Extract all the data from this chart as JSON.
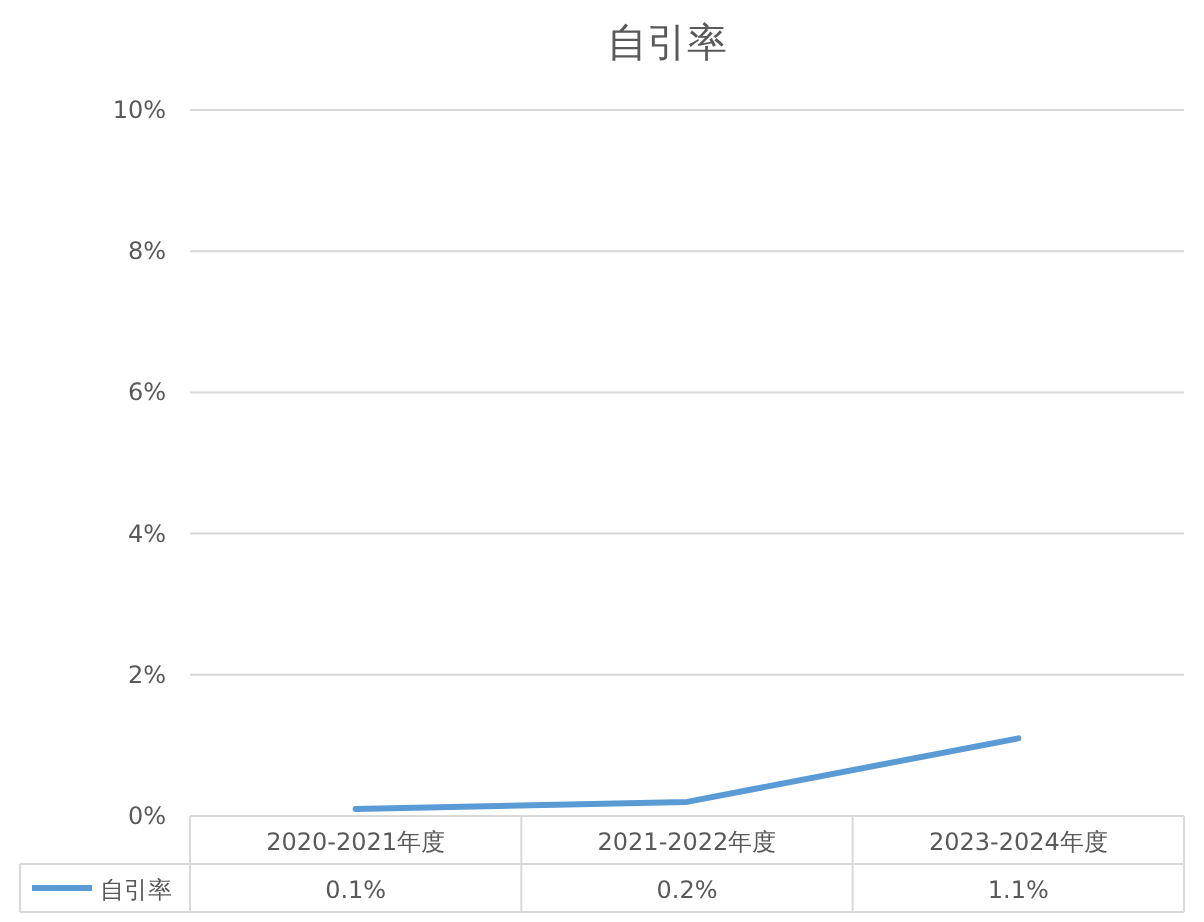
{
  "chart_data": {
    "type": "line",
    "title": "自引率",
    "categories": [
      "2020-2021年度",
      "2021-2022年度",
      "2023-2024年度"
    ],
    "series": [
      {
        "name": "自引率",
        "color": "#5b9bd5",
        "values": [
          0.1,
          0.2,
          1.1
        ],
        "value_labels": [
          "0.1%",
          "0.2%",
          "1.1%"
        ]
      }
    ],
    "ylim": [
      0,
      10
    ],
    "yticks": [
      {
        "value": 0,
        "label": "0%"
      },
      {
        "value": 2,
        "label": "2%"
      },
      {
        "value": 4,
        "label": "4%"
      },
      {
        "value": 6,
        "label": "6%"
      },
      {
        "value": 8,
        "label": "8%"
      },
      {
        "value": 10,
        "label": "10%"
      }
    ],
    "grid": "y",
    "legend": "bottom",
    "marker": "none",
    "line_style": "solid"
  }
}
